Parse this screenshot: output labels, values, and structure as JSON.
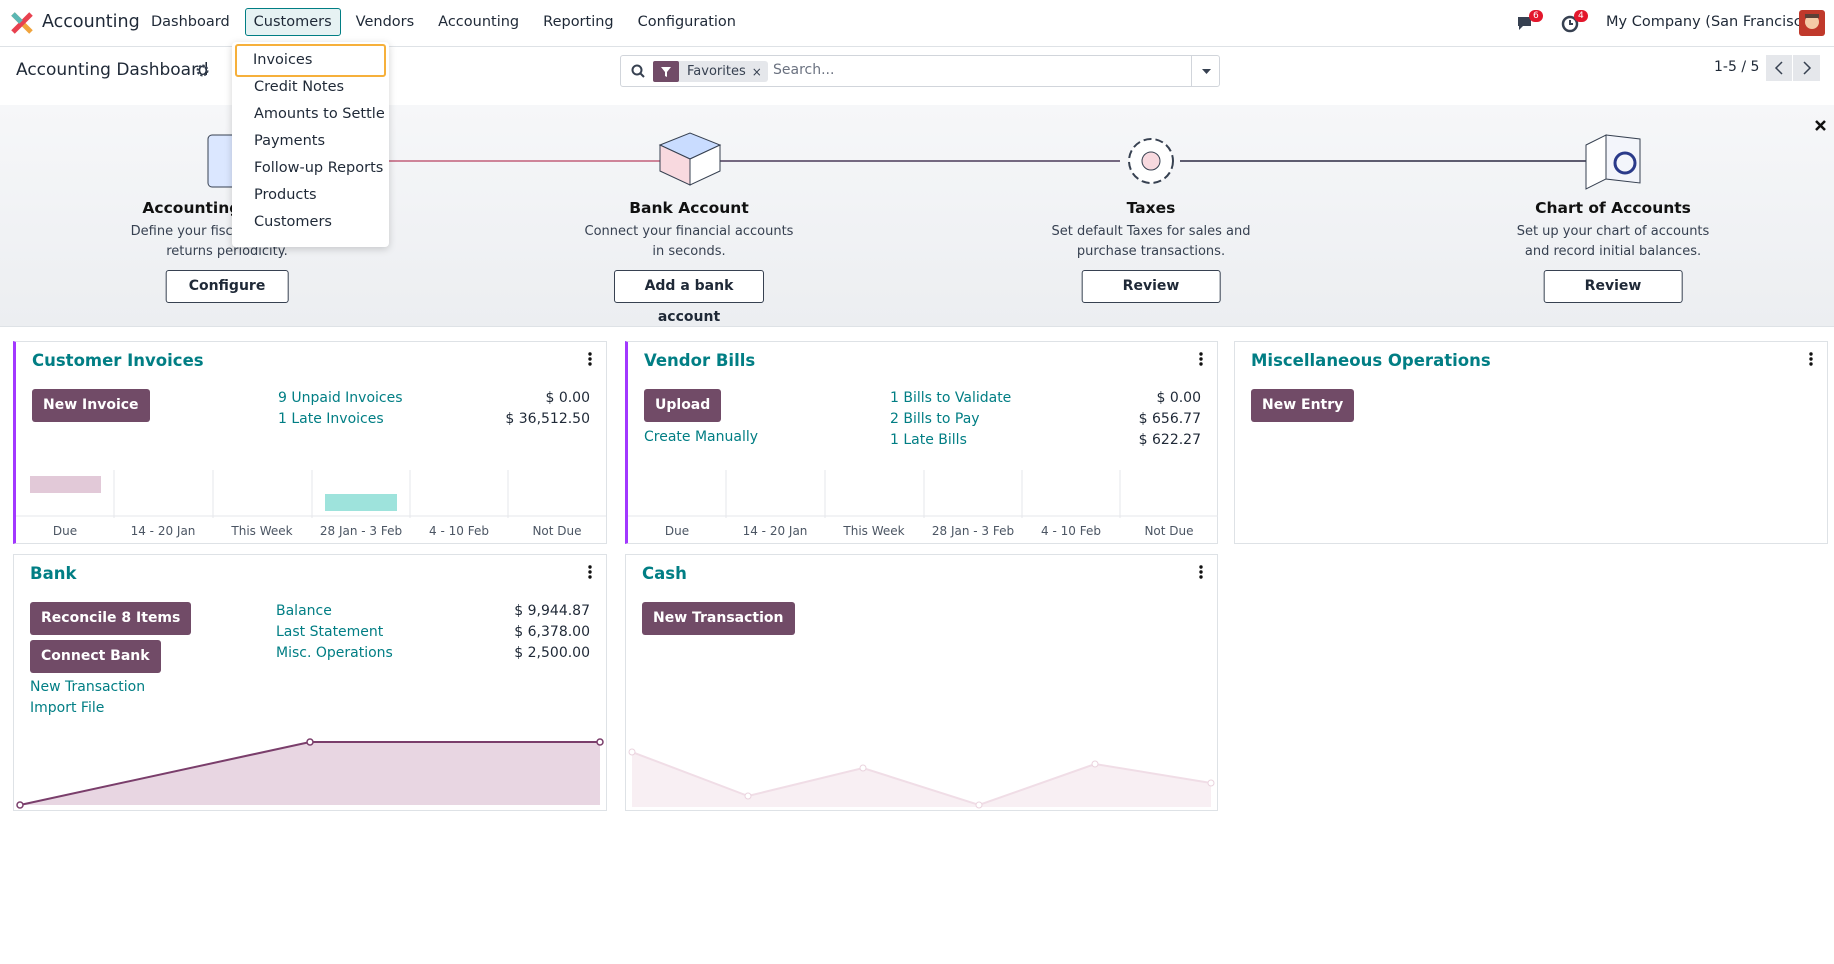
{
  "navbar": {
    "app": "Accounting",
    "menu": [
      "Dashboard",
      "Customers",
      "Vendors",
      "Accounting",
      "Reporting",
      "Configuration"
    ],
    "messages_badge": "6",
    "activities_badge": "4",
    "company": "My Company (San Francisco)"
  },
  "dropdown": [
    "Invoices",
    "Credit Notes",
    "Amounts to Settle",
    "Payments",
    "Follow-up Reports",
    "Products",
    "Customers"
  ],
  "control_panel": {
    "title": "Accounting Dashboard",
    "facet": "Favorites",
    "search_placeholder": "Search...",
    "pager": "1-5 / 5"
  },
  "onboarding": {
    "steps": [
      {
        "title": "Accounting Periods",
        "description": "Define your fiscal years & tax returns periodicity.",
        "button": "Configure"
      },
      {
        "title": "Bank Account",
        "description": "Connect your financial accounts in seconds.",
        "button": "Add a bank account"
      },
      {
        "title": "Taxes",
        "description": "Set default Taxes for sales and purchase transactions.",
        "button": "Review"
      },
      {
        "title": "Chart of Accounts",
        "description": "Set up your chart of accounts and record initial balances.",
        "button": "Review"
      }
    ]
  },
  "cards": {
    "customer_invoices": {
      "title": "Customer Invoices",
      "button": "New Invoice",
      "stats": [
        {
          "label": "9 Unpaid Invoices",
          "amount": "$ 0.00"
        },
        {
          "label": "1 Late Invoices",
          "amount": "$ 36,512.50"
        }
      ],
      "graph_labels": [
        "Due",
        "14 - 20 Jan",
        "This Week",
        "28 Jan - 3 Feb",
        "4 - 10 Feb",
        "Not Due"
      ]
    },
    "vendor_bills": {
      "title": "Vendor Bills",
      "button": "Upload",
      "link": "Create Manually",
      "stats": [
        {
          "label": "1 Bills to Validate",
          "amount": "$ 0.00"
        },
        {
          "label": "2 Bills to Pay",
          "amount": "$ 656.77"
        },
        {
          "label": "1 Late Bills",
          "amount": "$ 622.27"
        }
      ],
      "graph_labels": [
        "Due",
        "14 - 20 Jan",
        "This Week",
        "28 Jan - 3 Feb",
        "4 - 10 Feb",
        "Not Due"
      ]
    },
    "misc": {
      "title": "Miscellaneous Operations",
      "button": "New Entry"
    },
    "bank": {
      "title": "Bank",
      "buttons": [
        "Reconcile 8 Items",
        "Connect Bank"
      ],
      "links": [
        "New Transaction",
        "Import File"
      ],
      "stats": [
        {
          "label": "Balance",
          "amount": "$ 9,944.87"
        },
        {
          "label": "Last Statement",
          "amount": "$ 6,378.00"
        },
        {
          "label": "Misc. Operations",
          "amount": "$ 2,500.00"
        }
      ]
    },
    "cash": {
      "title": "Cash",
      "button": "New Transaction"
    }
  }
}
